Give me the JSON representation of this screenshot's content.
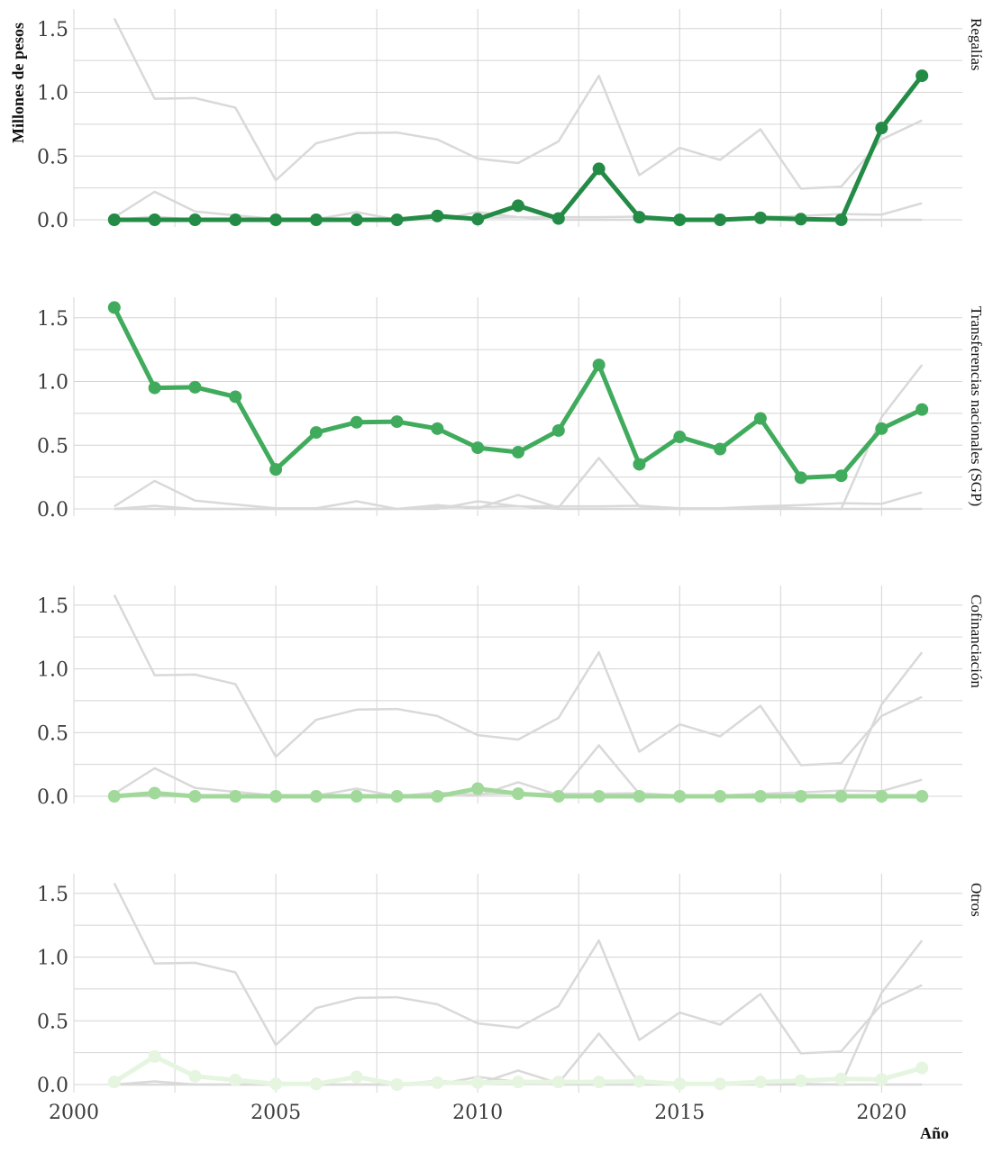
{
  "chart_data": {
    "type": "line",
    "ylabel": "Millones de pesos",
    "xlabel": "Año",
    "x": [
      2001,
      2002,
      2003,
      2004,
      2005,
      2006,
      2007,
      2008,
      2009,
      2010,
      2011,
      2012,
      2013,
      2014,
      2015,
      2016,
      2017,
      2018,
      2019,
      2020,
      2021
    ],
    "xlim": [
      2000,
      2022
    ],
    "ylim": [
      0,
      1.65
    ],
    "x_ticks": [
      "2000",
      "2005",
      "2010",
      "2015",
      "2020"
    ],
    "y_ticks": [
      "0.0",
      "0.5",
      "1.0",
      "1.5"
    ],
    "grid": true,
    "background_series_color": "#d9d9d9",
    "panels": [
      {
        "name": "Regalías",
        "color": "#238b45",
        "values": [
          0,
          0,
          0,
          0,
          0,
          0,
          0,
          0,
          0.03,
          0.005,
          0.11,
          0.01,
          0.4,
          0.02,
          0,
          0,
          0.015,
          0.005,
          0,
          0.72,
          1.13
        ]
      },
      {
        "name": "Transferencias nacionales (SGP)",
        "color": "#41ab5d",
        "values": [
          1.58,
          0.95,
          0.955,
          0.88,
          0.31,
          0.6,
          0.68,
          0.685,
          0.63,
          0.48,
          0.445,
          0.615,
          1.13,
          0.35,
          0.565,
          0.47,
          0.71,
          0.245,
          0.26,
          0.63,
          0.78
        ]
      },
      {
        "name": "Cofinanciación",
        "color": "#a1d99b",
        "values": [
          0,
          0.025,
          0,
          0,
          0,
          0,
          0,
          0,
          0,
          0.06,
          0.02,
          0,
          0,
          0,
          0,
          0,
          0,
          0,
          0,
          0,
          0
        ]
      },
      {
        "name": "Otros",
        "color": "#e5f5e0",
        "values": [
          0.02,
          0.22,
          0.065,
          0.035,
          0.005,
          0.005,
          0.06,
          0,
          0.015,
          0.015,
          0.02,
          0.02,
          0.02,
          0.025,
          0.005,
          0.005,
          0.02,
          0.03,
          0.045,
          0.04,
          0.13
        ]
      }
    ]
  }
}
